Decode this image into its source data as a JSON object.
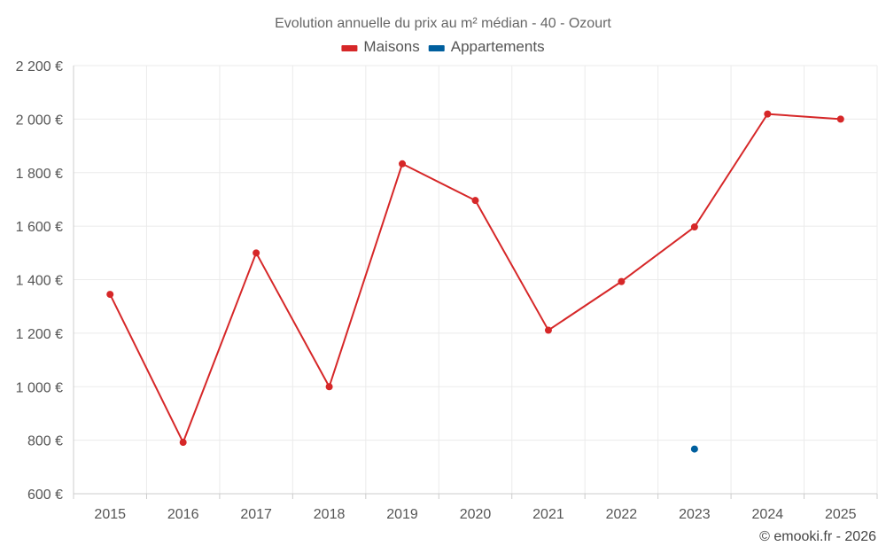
{
  "chart_data": {
    "type": "line",
    "title": "Evolution annuelle du prix au m² médian - 40 - Ozourt",
    "categories": [
      "2015",
      "2016",
      "2017",
      "2018",
      "2019",
      "2020",
      "2021",
      "2022",
      "2023",
      "2024",
      "2025"
    ],
    "series": [
      {
        "name": "Maisons",
        "color": "#d62728",
        "values": [
          1345,
          792,
          1500,
          1000,
          1833,
          1696,
          1211,
          1393,
          1597,
          2019,
          2000
        ]
      },
      {
        "name": "Appartements",
        "color": "#005f9e",
        "values": [
          null,
          null,
          null,
          null,
          null,
          null,
          null,
          null,
          767,
          null,
          null
        ]
      }
    ],
    "ylim": [
      600,
      2200
    ],
    "yticks": [
      600,
      800,
      1000,
      1200,
      1400,
      1600,
      1800,
      2000,
      2200
    ],
    "ytick_labels": [
      "600 €",
      "800 €",
      "1 000 €",
      "1 200 €",
      "1 400 €",
      "1 600 €",
      "1 800 €",
      "2 000 €",
      "2 200 €"
    ],
    "grid": true,
    "legend_position": "top-center"
  },
  "credit": "© emooki.fr - 2026"
}
